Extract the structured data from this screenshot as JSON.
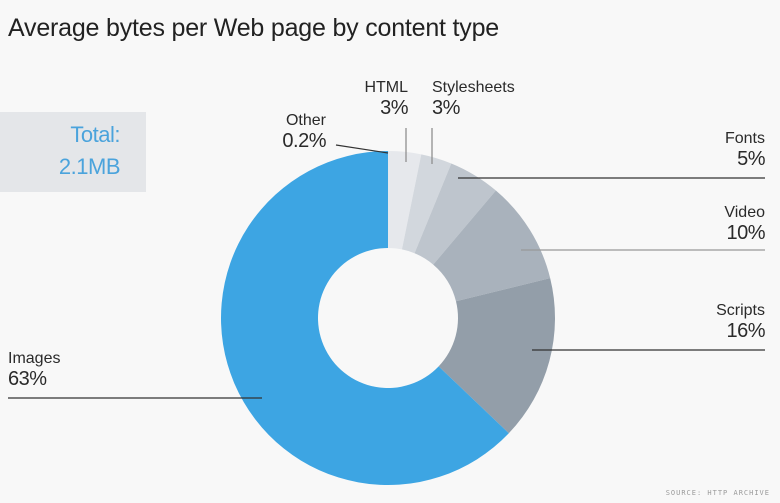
{
  "title": "Average bytes per Web page by content type",
  "total": {
    "label": "Total:",
    "value": "2.1MB"
  },
  "source": "SOURCE: HTTP ARCHIVE",
  "labels": {
    "other": {
      "name": "Other",
      "pct": "0.2%"
    },
    "html": {
      "name": "HTML",
      "pct": "3%"
    },
    "stylesheets": {
      "name": "Stylesheets",
      "pct": "3%"
    },
    "fonts": {
      "name": "Fonts",
      "pct": "5%"
    },
    "video": {
      "name": "Video",
      "pct": "10%"
    },
    "scripts": {
      "name": "Scripts",
      "pct": "16%"
    },
    "images": {
      "name": "Images",
      "pct": "63%"
    }
  },
  "chart_data": {
    "type": "pie",
    "variant": "donut",
    "title": "Average bytes per Web page by content type",
    "annotation": "Total: 2.1MB",
    "source": "SOURCE: HTTP ARCHIVE",
    "categories": [
      "Other",
      "HTML",
      "Stylesheets",
      "Fonts",
      "Video",
      "Scripts",
      "Images"
    ],
    "values": [
      0.2,
      3,
      3,
      5,
      10,
      16,
      63
    ],
    "unit": "%",
    "colors": [
      "#e6e8ec",
      "#e6e8ec",
      "#d2d7dd",
      "#bec5cd",
      "#a9b2bc",
      "#939ea9",
      "#3da5e3"
    ],
    "start_angle_deg": 0,
    "direction": "clockwise",
    "legend": "direct labels with leader lines"
  }
}
